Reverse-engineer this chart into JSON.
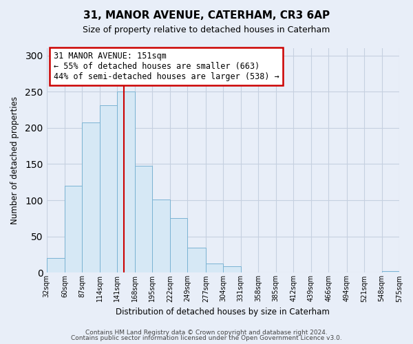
{
  "title": "31, MANOR AVENUE, CATERHAM, CR3 6AP",
  "subtitle": "Size of property relative to detached houses in Caterham",
  "xlabel": "Distribution of detached houses by size in Caterham",
  "ylabel": "Number of detached properties",
  "bar_edges": [
    32,
    60,
    87,
    114,
    141,
    168,
    195,
    222,
    249,
    277,
    304,
    331,
    358,
    385,
    412,
    439,
    466,
    494,
    521,
    548,
    575
  ],
  "bar_heights": [
    20,
    120,
    207,
    231,
    250,
    148,
    101,
    75,
    35,
    13,
    9,
    0,
    0,
    0,
    0,
    0,
    0,
    0,
    0,
    2
  ],
  "bar_color": "#d6e8f5",
  "bar_edgecolor": "#7ab3d3",
  "vline_x": 151,
  "vline_color": "#cc0000",
  "ylim": [
    0,
    310
  ],
  "yticks": [
    0,
    50,
    100,
    150,
    200,
    250,
    300
  ],
  "xtick_labels": [
    "32sqm",
    "60sqm",
    "87sqm",
    "114sqm",
    "141sqm",
    "168sqm",
    "195sqm",
    "222sqm",
    "249sqm",
    "277sqm",
    "304sqm",
    "331sqm",
    "358sqm",
    "385sqm",
    "412sqm",
    "439sqm",
    "466sqm",
    "494sqm",
    "521sqm",
    "548sqm",
    "575sqm"
  ],
  "annotation_title": "31 MANOR AVENUE: 151sqm",
  "annotation_line1": "← 55% of detached houses are smaller (663)",
  "annotation_line2": "44% of semi-detached houses are larger (538) →",
  "footer1": "Contains HM Land Registry data © Crown copyright and database right 2024.",
  "footer2": "Contains public sector information licensed under the Open Government Licence v3.0.",
  "bg_color": "#e8eef8",
  "plot_bg_color": "#e8eef8",
  "grid_color": "#c5d0e0"
}
